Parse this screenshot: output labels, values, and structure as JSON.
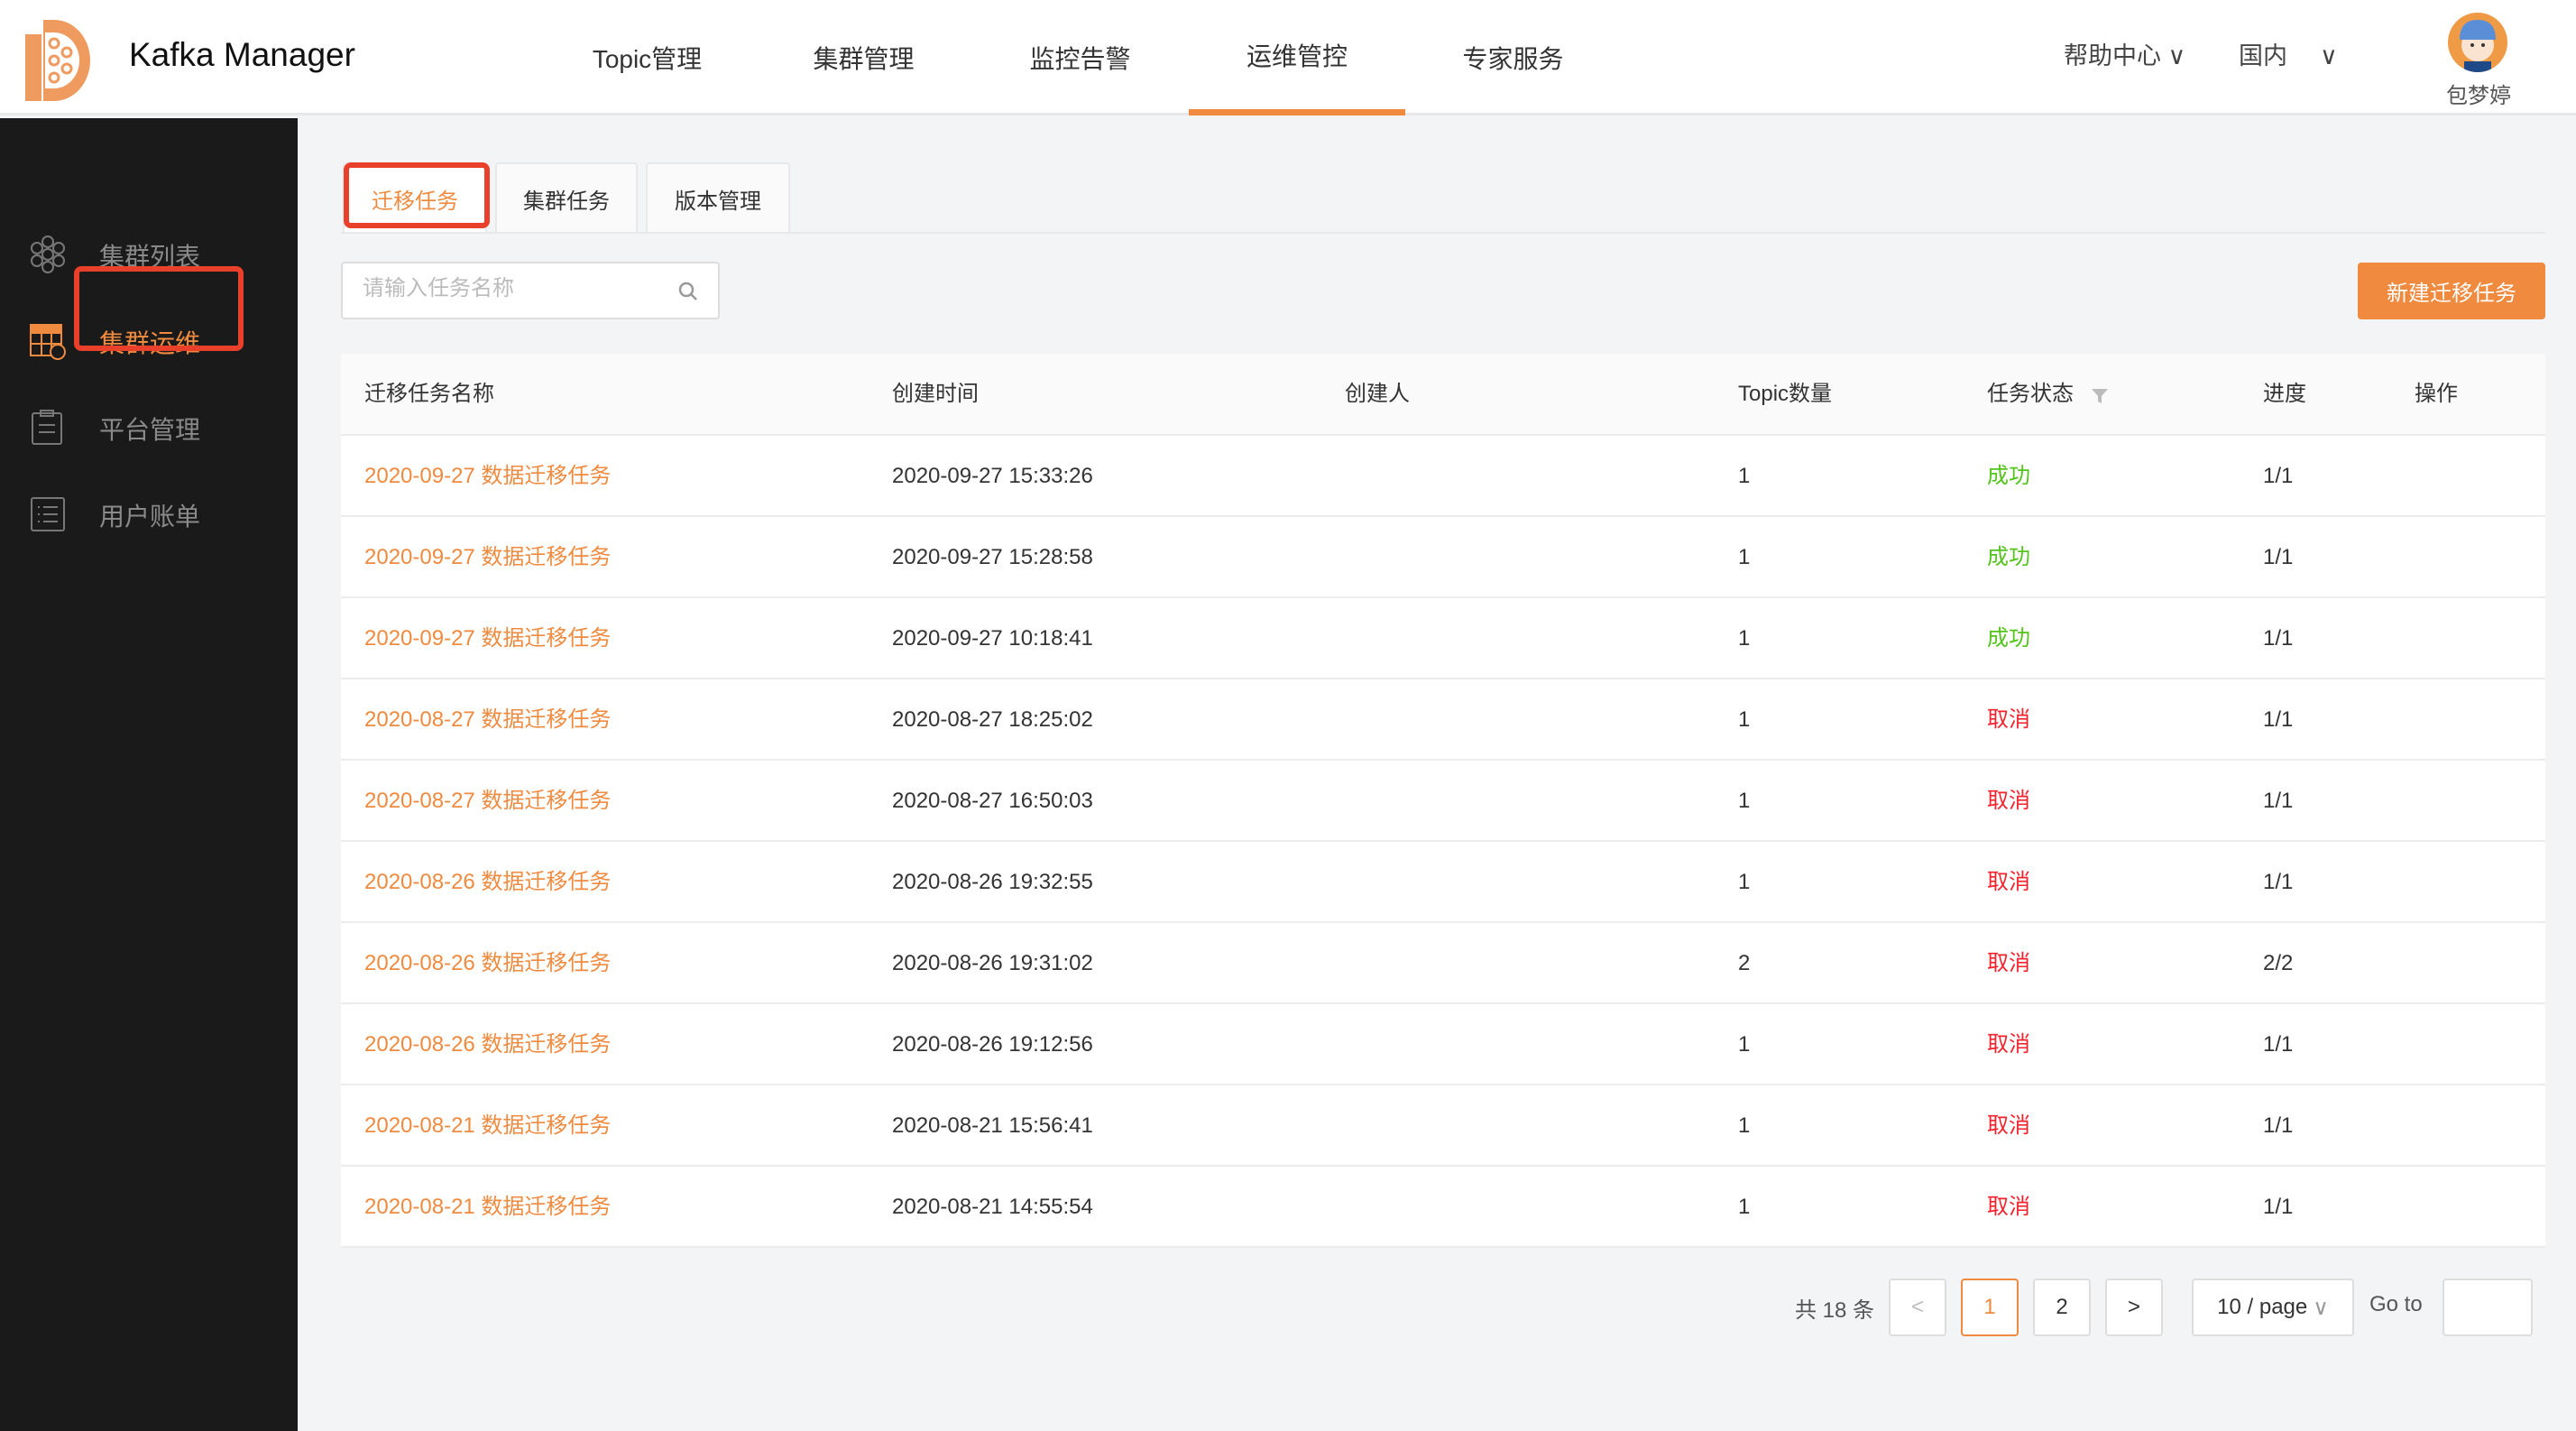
{
  "header": {
    "app_title": "Kafka Manager",
    "nav": [
      {
        "label": "Topic管理"
      },
      {
        "label": "集群管理"
      },
      {
        "label": "监控告警"
      },
      {
        "label": "运维管控",
        "active": true
      },
      {
        "label": "专家服务"
      }
    ],
    "help": "帮助中心",
    "region": "国内",
    "user": "包梦婷"
  },
  "sidebar": {
    "items": [
      {
        "label": "集群列表",
        "icon": "hexagon-cluster-icon"
      },
      {
        "label": "集群运维",
        "icon": "table-dollar-icon",
        "active": true
      },
      {
        "label": "平台管理",
        "icon": "clipboard-icon"
      },
      {
        "label": "用户账单",
        "icon": "list-icon"
      }
    ]
  },
  "tabs": [
    {
      "label": "迁移任务",
      "active": true
    },
    {
      "label": "集群任务"
    },
    {
      "label": "版本管理"
    }
  ],
  "search": {
    "placeholder": "请输入任务名称"
  },
  "new_button": "新建迁移任务",
  "table": {
    "columns": [
      "迁移任务名称",
      "创建时间",
      "创建人",
      "Topic数量",
      "任务状态",
      "进度",
      "操作"
    ],
    "rows": [
      {
        "name": "2020-09-27 数据迁移任务",
        "time": "2020-09-27 15:33:26",
        "creator": "",
        "count": "1",
        "status": "成功",
        "progress": "1/1"
      },
      {
        "name": "2020-09-27 数据迁移任务",
        "time": "2020-09-27 15:28:58",
        "creator": "",
        "count": "1",
        "status": "成功",
        "progress": "1/1"
      },
      {
        "name": "2020-09-27 数据迁移任务",
        "time": "2020-09-27 10:18:41",
        "creator": "",
        "count": "1",
        "status": "成功",
        "progress": "1/1"
      },
      {
        "name": "2020-08-27 数据迁移任务",
        "time": "2020-08-27 18:25:02",
        "creator": "",
        "count": "1",
        "status": "取消",
        "progress": "1/1"
      },
      {
        "name": "2020-08-27 数据迁移任务",
        "time": "2020-08-27 16:50:03",
        "creator": "",
        "count": "1",
        "status": "取消",
        "progress": "1/1"
      },
      {
        "name": "2020-08-26 数据迁移任务",
        "time": "2020-08-26 19:32:55",
        "creator": "",
        "count": "1",
        "status": "取消",
        "progress": "1/1"
      },
      {
        "name": "2020-08-26 数据迁移任务",
        "time": "2020-08-26 19:31:02",
        "creator": "",
        "count": "2",
        "status": "取消",
        "progress": "2/2"
      },
      {
        "name": "2020-08-26 数据迁移任务",
        "time": "2020-08-26 19:12:56",
        "creator": "",
        "count": "1",
        "status": "取消",
        "progress": "1/1"
      },
      {
        "name": "2020-08-21 数据迁移任务",
        "time": "2020-08-21 15:56:41",
        "creator": "",
        "count": "1",
        "status": "取消",
        "progress": "1/1"
      },
      {
        "name": "2020-08-21 数据迁移任务",
        "time": "2020-08-21 14:55:54",
        "creator": "",
        "count": "1",
        "status": "取消",
        "progress": "1/1"
      }
    ]
  },
  "pagination": {
    "total": "共 18 条",
    "pages": [
      "1",
      "2"
    ],
    "current": "1",
    "page_size": "10 / page",
    "goto": "Go to"
  },
  "colors": {
    "accent": "#ef8a3f",
    "success": "#52c41a",
    "cancel": "#f5222d",
    "sidebar": "#1a1a1a"
  }
}
